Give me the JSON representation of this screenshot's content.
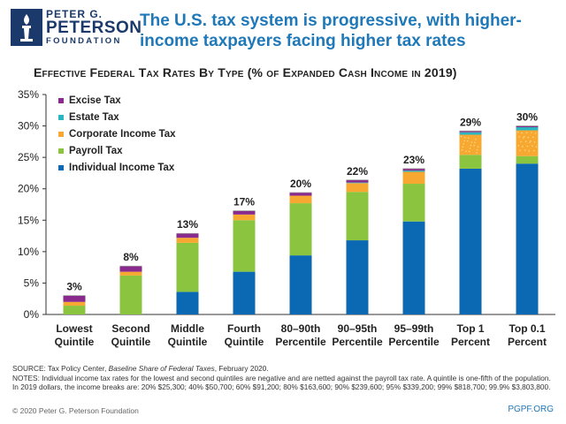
{
  "logo": {
    "line1": "PETER G.",
    "line2": "PETERSON",
    "line3": "FOUNDATION"
  },
  "headline": "The U.S. tax system is progressive, with higher-income taxpayers facing higher tax rates",
  "colors": {
    "excise": "#8b2a8e",
    "estate": "#2bb6bf",
    "corporate": "#f7a830",
    "payroll": "#8bc53f",
    "individual": "#0b68b2",
    "headline": "#1f78b8"
  },
  "chart_data": {
    "type": "bar",
    "stacked": true,
    "title": "Effective Federal Tax Rates By Type (% of Expanded Cash Income in 2019)",
    "categories": [
      [
        "Lowest",
        "Quintile"
      ],
      [
        "Second",
        "Quintile"
      ],
      [
        "Middle",
        "Quintile"
      ],
      [
        "Fourth",
        "Quintile"
      ],
      [
        "80–90th",
        "Percentile"
      ],
      [
        "90–95th",
        "Percentile"
      ],
      [
        "95–99th",
        "Percentile"
      ],
      [
        "Top 1",
        "Percent"
      ],
      [
        "Top 0.1",
        "Percent"
      ]
    ],
    "series": [
      {
        "name": "Individual Income Tax",
        "key": "individual",
        "values": [
          0,
          0,
          3.6,
          6.8,
          9.4,
          11.8,
          14.8,
          23.2,
          24.0
        ]
      },
      {
        "name": "Payroll Tax",
        "key": "payroll",
        "values": [
          1.4,
          6.2,
          7.8,
          8.2,
          8.3,
          7.7,
          6.0,
          2.2,
          1.2
        ]
      },
      {
        "name": "Corporate Income Tax",
        "key": "corporate",
        "values": [
          0.6,
          0.6,
          0.8,
          0.9,
          1.2,
          1.4,
          1.9,
          3.2,
          4.1
        ]
      },
      {
        "name": "Estate Tax",
        "key": "estate",
        "values": [
          0,
          0,
          0,
          0,
          0,
          0.1,
          0.2,
          0.4,
          0.5
        ]
      },
      {
        "name": "Excise Tax",
        "key": "excise",
        "values": [
          1.0,
          0.9,
          0.7,
          0.6,
          0.5,
          0.4,
          0.3,
          0.2,
          0.2
        ]
      }
    ],
    "totals": [
      "3%",
      "8%",
      "13%",
      "17%",
      "20%",
      "22%",
      "23%",
      "29%",
      "30%"
    ],
    "legend_order": [
      "Excise Tax",
      "Estate Tax",
      "Corporate Income Tax",
      "Payroll Tax",
      "Individual Income Tax"
    ],
    "legend_position": "top-left",
    "ylim": [
      0,
      35
    ],
    "yticks": [
      "0%",
      "5%",
      "10%",
      "15%",
      "20%",
      "25%",
      "30%",
      "35%"
    ],
    "grid": false
  },
  "source_prefix": "SOURCE: Tax Policy Center, ",
  "source_title": "Baseline Share of Federal Taxes",
  "source_suffix": ", February 2020.",
  "notes": "NOTES: Individual income tax rates for the lowest and second quintiles are negative and are netted against the payroll tax rate. A quintile is one-fifth of the population. In 2019 dollars, the income breaks are: 20% $25,300; 40% $50,700; 60% $91,200; 80% $163,600; 90% $239,600; 95% $339,200; 99% $818,700; 99.9% $3,803,800.",
  "copyright": "© 2020 Peter G. Peterson Foundation",
  "site": "PGPF.ORG"
}
